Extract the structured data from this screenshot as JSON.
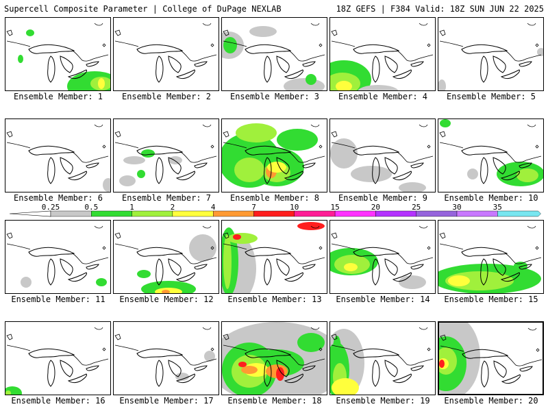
{
  "header": {
    "left_text": "Supercell Composite Parameter | College of DuPage NEXLAB",
    "right_text": "18Z GEFS | F384 Valid: 18Z SUN JUN 22 2025"
  },
  "colorbar": {
    "ticks": [
      "0.25",
      "0.5",
      "1",
      "2",
      "4",
      "7",
      "10",
      "15",
      "20",
      "25",
      "30",
      "35"
    ],
    "colors": [
      "#c8c8c8",
      "#32dc32",
      "#a0f03c",
      "#ffff3c",
      "#ff9a32",
      "#ff1e1e",
      "#ff1e96",
      "#ff32ff",
      "#b432ff",
      "#9664dc",
      "#c878ff",
      "#78e6f0"
    ]
  },
  "members": [
    {
      "label": "Ensemble Member: 1",
      "coverage": "green and yellow over Ohio Valley and lower Great Lakes, small yellow core",
      "selected": false
    },
    {
      "label": "Ensemble Member: 2",
      "coverage": "none",
      "selected": false
    },
    {
      "label": "Ensemble Member: 3",
      "coverage": "gray and green over northern Plains and southeast",
      "selected": false
    },
    {
      "label": "Ensemble Member: 4",
      "coverage": "yellow-green over southwest corner",
      "selected": false
    },
    {
      "label": "Ensemble Member: 5",
      "coverage": "trace gray",
      "selected": false
    },
    {
      "label": "Ensemble Member: 6",
      "coverage": "trace gray",
      "selected": false
    },
    {
      "label": "Ensemble Member: 7",
      "coverage": "scattered gray and green",
      "selected": false
    },
    {
      "label": "Ensemble Member: 8",
      "coverage": "widespread green and yellow with orange core over Michigan",
      "selected": false
    },
    {
      "label": "Ensemble Member: 9",
      "coverage": "gray",
      "selected": false
    },
    {
      "label": "Ensemble Member: 10",
      "coverage": "green and yellow over Ohio Valley",
      "selected": false
    },
    {
      "label": "Ensemble Member: 11",
      "coverage": "trace green",
      "selected": false
    },
    {
      "label": "Ensemble Member: 12",
      "coverage": "green, yellow, orange over south edge",
      "selected": false
    },
    {
      "label": "Ensemble Member: 13",
      "coverage": "green, yellow, red along northwest and west",
      "selected": false
    },
    {
      "label": "Ensemble Member: 14",
      "coverage": "green and yellow over Upper Midwest",
      "selected": false
    },
    {
      "label": "Ensemble Member: 15",
      "coverage": "green and yellow across south half",
      "selected": false
    },
    {
      "label": "Ensemble Member: 16",
      "coverage": "trace green southwest corner",
      "selected": false
    },
    {
      "label": "Ensemble Member: 17",
      "coverage": "trace gray",
      "selected": false
    },
    {
      "label": "Ensemble Member: 18",
      "coverage": "widespread green, yellow, orange, red over Michigan and Ohio Valley",
      "selected": false
    },
    {
      "label": "Ensemble Member: 19",
      "coverage": "green and yellow over west side",
      "selected": false
    },
    {
      "label": "Ensemble Member: 20",
      "coverage": "green, yellow, red over west edge",
      "selected": true
    }
  ]
}
